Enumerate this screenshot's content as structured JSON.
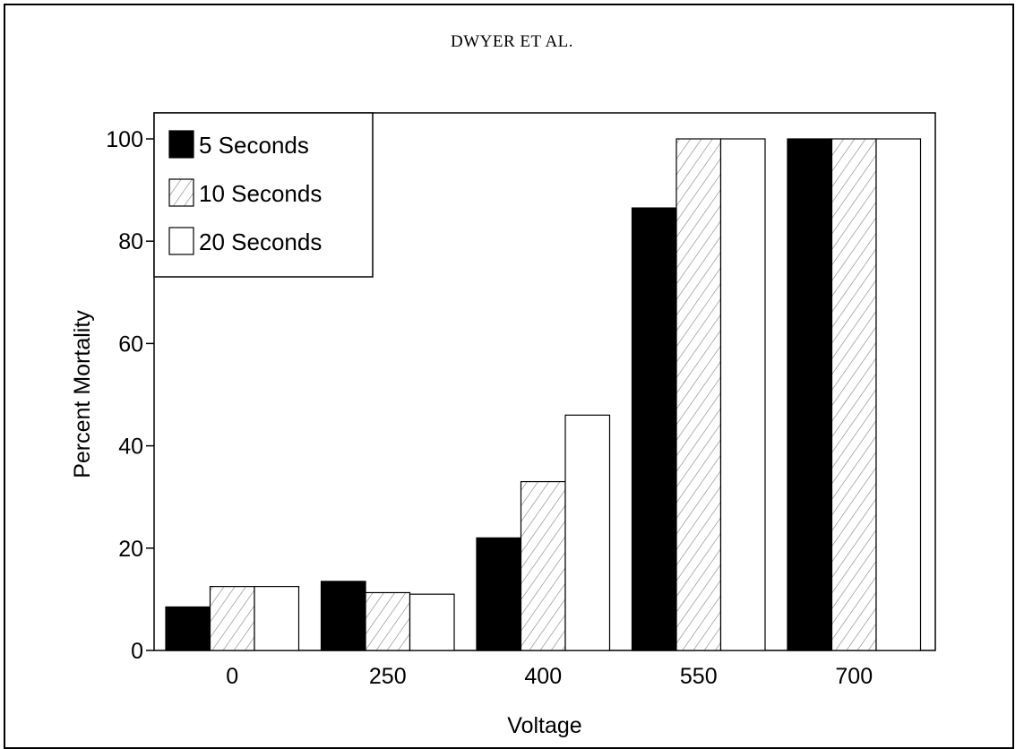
{
  "page": {
    "header": "DWYER ET AL."
  },
  "colors": {
    "five_seconds": "#000000",
    "ten_seconds": "hatched",
    "twenty_seconds": "#ffffff"
  },
  "chart_data": {
    "type": "bar",
    "xlabel": "Voltage",
    "ylabel": "Percent Mortality",
    "categories": [
      "0",
      "250",
      "400",
      "550",
      "700"
    ],
    "ylim": [
      0,
      102
    ],
    "yticks": [
      0,
      20,
      40,
      60,
      80,
      100
    ],
    "legend_position": "top-left",
    "grid": false,
    "series": [
      {
        "name": "5 Seconds",
        "values": [
          8.5,
          13.5,
          22,
          86.5,
          100
        ],
        "fill": "solid-black"
      },
      {
        "name": "10 Seconds",
        "values": [
          12.5,
          11.3,
          33,
          100,
          100
        ],
        "fill": "hatched"
      },
      {
        "name": "20 Seconds",
        "values": [
          12.5,
          11,
          46,
          100,
          100
        ],
        "fill": "white"
      }
    ]
  }
}
